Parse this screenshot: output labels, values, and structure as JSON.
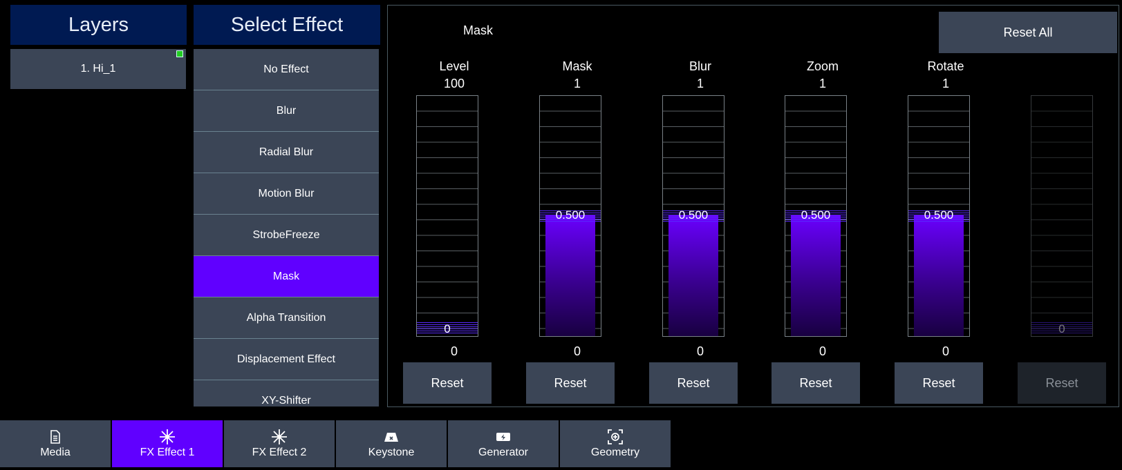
{
  "layers": {
    "title": "Layers",
    "items": [
      {
        "label": "1. Hi_1"
      }
    ]
  },
  "effects": {
    "title": "Select Effect",
    "items": [
      "No Effect",
      "Blur",
      "Radial Blur",
      "Motion Blur",
      "StrobeFreeze",
      "Mask",
      "Alpha Transition",
      "Displacement Effect",
      "XY-Shifter"
    ],
    "selected": "Mask"
  },
  "main": {
    "effect_name": "Mask",
    "reset_all_label": "Reset All",
    "sliders": [
      {
        "label": "Level",
        "top_value": "100",
        "value": "0",
        "min": "0",
        "fraction": 0,
        "reset": "Reset",
        "enabled": true
      },
      {
        "label": "Mask",
        "top_value": "1",
        "value": "0.500",
        "min": "0",
        "fraction": 0.5,
        "reset": "Reset",
        "enabled": true
      },
      {
        "label": "Blur",
        "top_value": "1",
        "value": "0.500",
        "min": "0",
        "fraction": 0.5,
        "reset": "Reset",
        "enabled": true
      },
      {
        "label": "Zoom",
        "top_value": "1",
        "value": "0.500",
        "min": "0",
        "fraction": 0.5,
        "reset": "Reset",
        "enabled": true
      },
      {
        "label": "Rotate",
        "top_value": "1",
        "value": "0.500",
        "min": "0",
        "fraction": 0.5,
        "reset": "Reset",
        "enabled": true
      },
      {
        "label": "",
        "top_value": "",
        "value": "0",
        "min": "",
        "fraction": 0,
        "reset": "Reset",
        "enabled": false
      }
    ]
  },
  "tabs": [
    {
      "label": "Media",
      "icon": "document-icon",
      "active": false
    },
    {
      "label": "FX Effect 1",
      "icon": "sparkle-icon",
      "active": true
    },
    {
      "label": "FX Effect 2",
      "icon": "sparkle-icon",
      "active": false
    },
    {
      "label": "Keystone",
      "icon": "keystone-icon",
      "active": false
    },
    {
      "label": "Generator",
      "icon": "generator-icon",
      "active": false
    },
    {
      "label": "Geometry",
      "icon": "geometry-icon",
      "active": false
    }
  ],
  "colors": {
    "accent": "#6000ff",
    "header_bg": "#001a52",
    "button_bg": "#3b4556",
    "status_indicator": "#22cc22"
  }
}
